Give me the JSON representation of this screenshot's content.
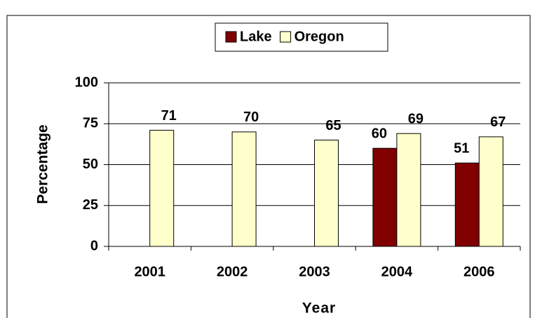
{
  "chart_data": {
    "type": "bar",
    "x_label": "Year",
    "y_label": "Percentage",
    "categories": [
      "2001",
      "2002",
      "2003",
      "2004",
      "2006"
    ],
    "series": [
      {
        "name": "Lake",
        "color": "#800000",
        "values": [
          null,
          null,
          null,
          60,
          51
        ]
      },
      {
        "name": "Oregon",
        "color": "#ffffcc",
        "values": [
          71,
          70,
          65,
          69,
          67
        ]
      }
    ],
    "ylim": [
      0,
      100
    ],
    "yticks": [
      0,
      25,
      50,
      75,
      100
    ],
    "grid": true,
    "legend": "top"
  }
}
